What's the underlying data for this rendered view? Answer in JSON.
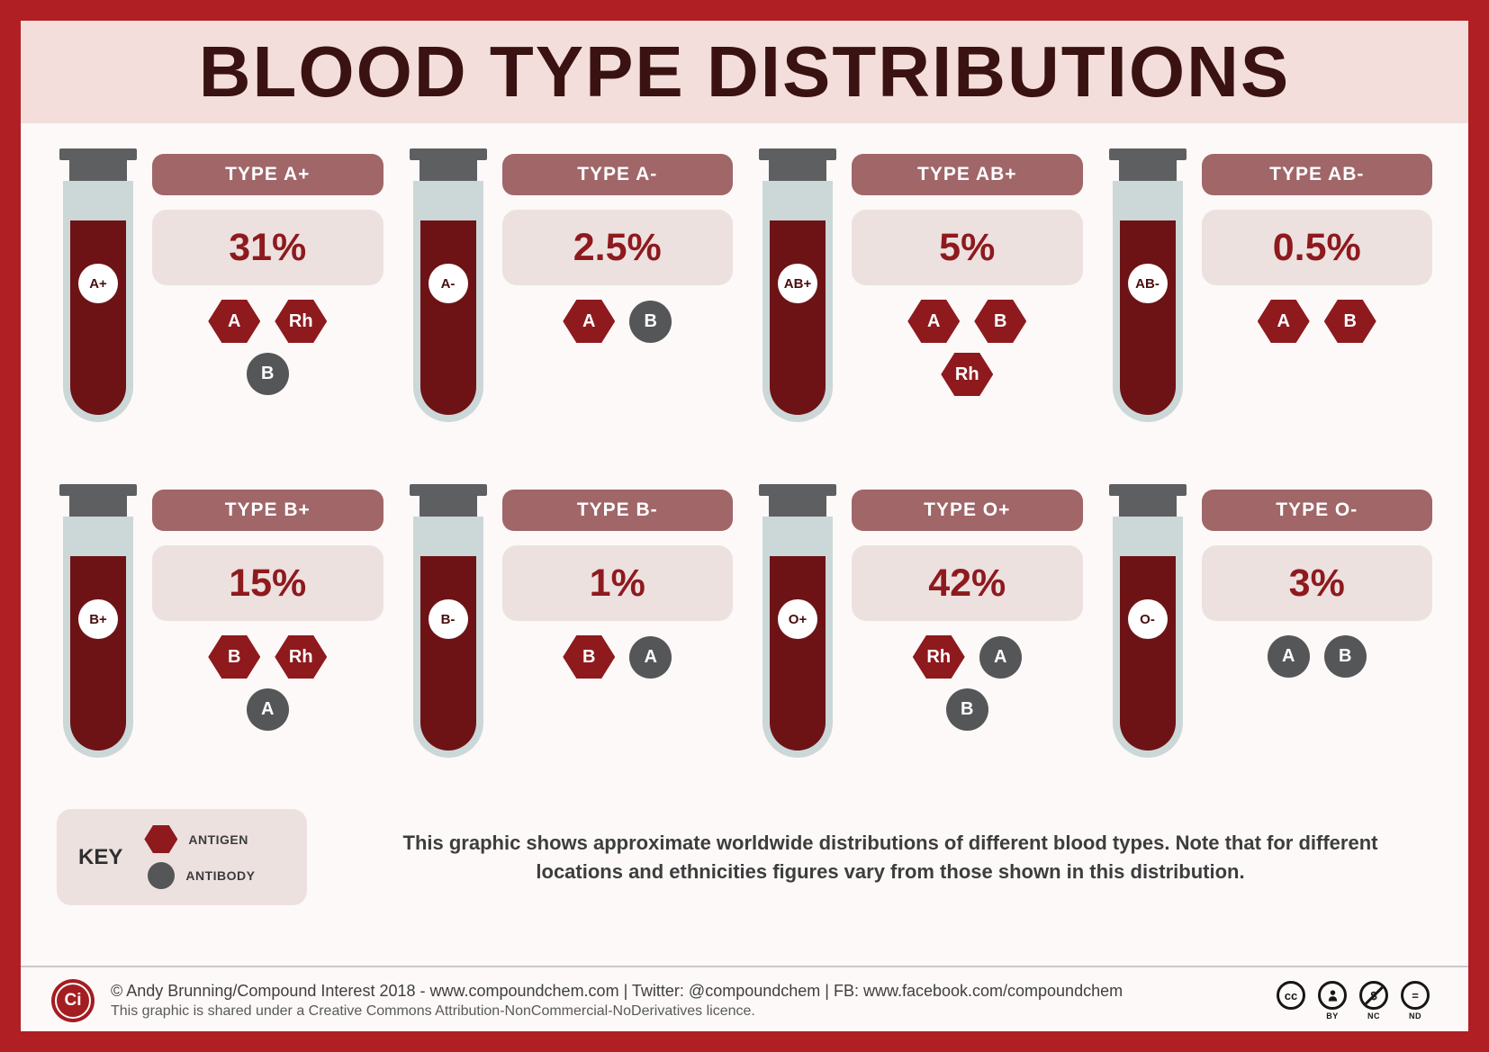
{
  "title": "BLOOD TYPE DISTRIBUTIONS",
  "cards": [
    {
      "tube_label": "A+",
      "type_label": "TYPE A+",
      "percent": "31%",
      "marker_rows": [
        [
          {
            "shape": "hexagon",
            "label": "A"
          },
          {
            "shape": "hexagon",
            "label": "Rh"
          }
        ],
        [
          {
            "shape": "circle",
            "label": "B"
          }
        ]
      ]
    },
    {
      "tube_label": "A-",
      "type_label": "TYPE A-",
      "percent": "2.5%",
      "marker_rows": [
        [
          {
            "shape": "hexagon",
            "label": "A"
          },
          {
            "shape": "circle",
            "label": "B"
          }
        ]
      ]
    },
    {
      "tube_label": "AB+",
      "type_label": "TYPE AB+",
      "percent": "5%",
      "marker_rows": [
        [
          {
            "shape": "hexagon",
            "label": "A"
          },
          {
            "shape": "hexagon",
            "label": "B"
          }
        ],
        [
          {
            "shape": "hexagon",
            "label": "Rh"
          }
        ]
      ]
    },
    {
      "tube_label": "AB-",
      "type_label": "TYPE AB-",
      "percent": "0.5%",
      "marker_rows": [
        [
          {
            "shape": "hexagon",
            "label": "A"
          },
          {
            "shape": "hexagon",
            "label": "B"
          }
        ]
      ]
    },
    {
      "tube_label": "B+",
      "type_label": "TYPE B+",
      "percent": "15%",
      "marker_rows": [
        [
          {
            "shape": "hexagon",
            "label": "B"
          },
          {
            "shape": "hexagon",
            "label": "Rh"
          }
        ],
        [
          {
            "shape": "circle",
            "label": "A"
          }
        ]
      ]
    },
    {
      "tube_label": "B-",
      "type_label": "TYPE B-",
      "percent": "1%",
      "marker_rows": [
        [
          {
            "shape": "hexagon",
            "label": "B"
          },
          {
            "shape": "circle",
            "label": "A"
          }
        ]
      ]
    },
    {
      "tube_label": "O+",
      "type_label": "TYPE O+",
      "percent": "42%",
      "marker_rows": [
        [
          {
            "shape": "hexagon",
            "label": "Rh"
          },
          {
            "shape": "circle",
            "label": "A"
          }
        ],
        [
          {
            "shape": "circle",
            "label": "B"
          }
        ]
      ]
    },
    {
      "tube_label": "O-",
      "type_label": "TYPE O-",
      "percent": "3%",
      "marker_rows": [
        [
          {
            "shape": "circle",
            "label": "A"
          },
          {
            "shape": "circle",
            "label": "B"
          }
        ]
      ]
    }
  ],
  "key": {
    "title": "KEY",
    "antigen_label": "ANTIGEN",
    "antibody_label": "ANTIBODY"
  },
  "description": "This graphic shows approximate worldwide distributions of different blood types. Note that for different locations and ethnicities figures vary from those shown in this distribution.",
  "footer": {
    "logo": "Ci",
    "line1": "© Andy Brunning/Compound Interest 2018 - www.compoundchem.com | Twitter: @compoundchem | FB: www.facebook.com/compoundchem",
    "line2": "This graphic is shared under a Creative Commons Attribution-NonCommercial-NoDerivatives licence.",
    "icons": {
      "cc": "cc",
      "nc": "$",
      "nd": "="
    },
    "cc_labels": [
      "BY",
      "NC",
      "ND"
    ]
  },
  "colors": {
    "border_red": "#b01f24",
    "header_pink": "#f3dedb",
    "title_maroon": "#3a1212",
    "pill_rose": "#a06668",
    "percent_red": "#8e1a1e",
    "blood_red": "#6d1316",
    "glass_gray": "#ccd7d8",
    "antigen_red": "#8e1a1e",
    "antibody_gray": "#555658",
    "light_box": "#ede1e0"
  },
  "chart_data": {
    "type": "table",
    "title": "Blood Type Distributions (approximate worldwide)",
    "categories": [
      "A+",
      "A-",
      "AB+",
      "AB-",
      "B+",
      "B-",
      "O+",
      "O-"
    ],
    "values": [
      31,
      2.5,
      5,
      0.5,
      15,
      1,
      42,
      3
    ],
    "unit": "%",
    "antigens": {
      "A+": [
        "A",
        "Rh"
      ],
      "A-": [
        "A"
      ],
      "AB+": [
        "A",
        "B",
        "Rh"
      ],
      "AB-": [
        "A",
        "B"
      ],
      "B+": [
        "B",
        "Rh"
      ],
      "B-": [
        "B"
      ],
      "O+": [
        "Rh"
      ],
      "O-": []
    },
    "antibodies": {
      "A+": [
        "B"
      ],
      "A-": [
        "B"
      ],
      "AB+": [],
      "AB-": [],
      "B+": [
        "A"
      ],
      "B-": [
        "A"
      ],
      "O+": [
        "A",
        "B"
      ],
      "O-": [
        "A",
        "B"
      ]
    }
  }
}
